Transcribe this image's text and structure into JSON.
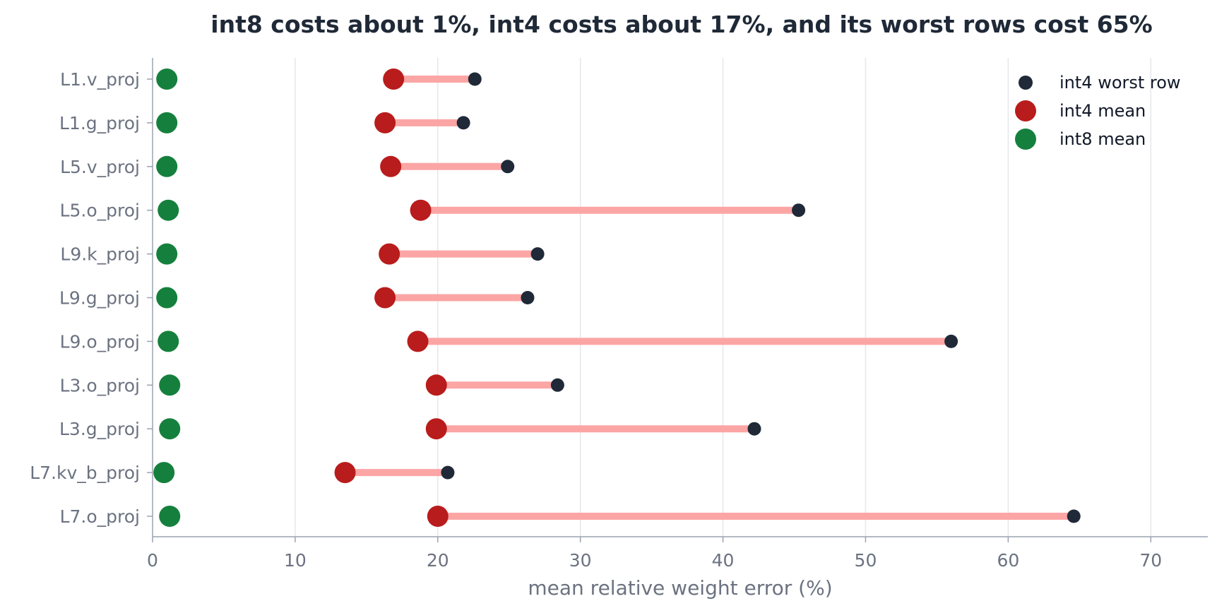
{
  "chart_data": {
    "type": "dot-range",
    "title": "int8 costs about 1%, int4 costs about 17%, and its worst rows cost 65%",
    "xlabel": "mean relative weight error (%)",
    "ylabel": "",
    "xlim": [
      0,
      74
    ],
    "xticks": [
      0,
      10,
      20,
      30,
      40,
      50,
      60,
      70
    ],
    "grid": "vertical",
    "legend_position": "top-right",
    "categories": [
      "L1.v_proj",
      "L1.g_proj",
      "L5.v_proj",
      "L5.o_proj",
      "L9.k_proj",
      "L9.g_proj",
      "L9.o_proj",
      "L3.o_proj",
      "L3.g_proj",
      "L7.kv_b_proj",
      "L7.o_proj"
    ],
    "series": [
      {
        "name": "int4 worst row",
        "color": "#1f2937",
        "values": [
          22.6,
          21.8,
          24.9,
          45.3,
          27.0,
          26.3,
          56.0,
          28.4,
          42.2,
          20.7,
          64.6
        ]
      },
      {
        "name": "int4 mean",
        "color": "#b91c1c",
        "values": [
          16.9,
          16.3,
          16.7,
          18.8,
          16.6,
          16.3,
          18.6,
          19.9,
          19.9,
          13.5,
          20.0
        ]
      },
      {
        "name": "int8 mean",
        "color": "#15803d",
        "values": [
          1.0,
          1.0,
          1.0,
          1.1,
          1.0,
          1.0,
          1.1,
          1.2,
          1.2,
          0.8,
          1.2
        ]
      }
    ],
    "range_color": "#fca5a5"
  }
}
